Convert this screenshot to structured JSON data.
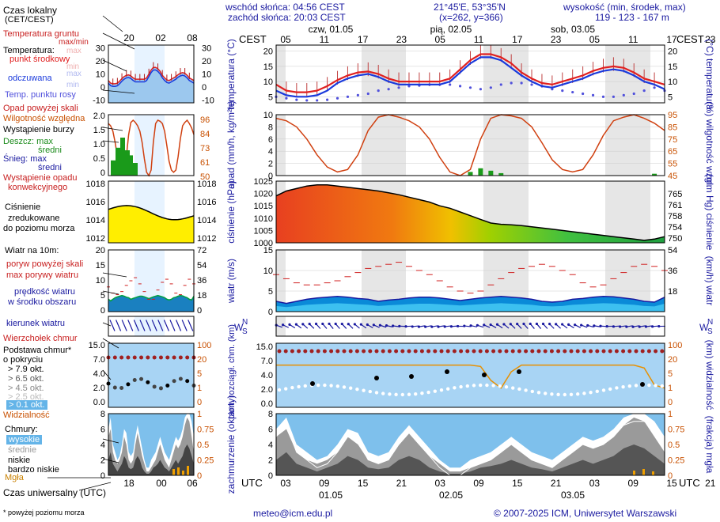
{
  "header": {
    "sunrise": "wschód słońca: 04:56 CEST",
    "sunset": "zachód słońca: 20:03 CEST",
    "coords": "21°45'E, 53°35'N",
    "grid": "(x=262, y=366)",
    "elev_label": "wysokość (min, środek, max)",
    "elev_values": "119 - 123 - 167 m"
  },
  "legend": {
    "local_time": "Czas lokalny",
    "local_time_sub": "(CET/CEST)",
    "ground_temp": "Temperatura gruntu",
    "ground_temp_sub": "max/min",
    "temperature": "Temperatura:",
    "temp_mid": "punkt środkowy",
    "temp_max": "max",
    "temp_min": "min",
    "felt": "odczuwana",
    "felt_max": "max",
    "felt_min": "min",
    "dew": "Temp. punktu rosy",
    "precip_above": "Opad powyżej skali",
    "humidity": "Wilgotność względna",
    "storm": "Wystąpienie burzy",
    "rain_max": "Deszcz: max",
    "rain_mid": "średni",
    "snow_max": "Śnieg:   max",
    "snow_mid": "średni",
    "convective1": "Wystąpienie opadu",
    "convective2": "konwekcyjnego",
    "pressure1": "Ciśnienie",
    "pressure2": "zredukowane",
    "pressure3": "do poziomu morza",
    "wind10": "Wiatr na 10m:",
    "gust_above": "poryw powyżej skali",
    "gust_max": "max porywy wiatru",
    "wind_speed": "prędkość wiatru",
    "wind_speed2": "w środku obszaru",
    "wind_dir": "kierunek wiatru",
    "shear": "Wierzchołek chmur",
    "cloud_base1": "Podstawa chmur*",
    "cloud_base2": "o pokryciu",
    "okt1": "> 7.9 okt.",
    "okt2": "> 6.5 okt.",
    "okt3": "> 4.5 okt.",
    "okt4": "> 2.5 okt.",
    "okt5": "> 0.1 okt.",
    "visibility": "Widzialność",
    "clouds": "Chmury:",
    "c_high": "wysokie",
    "c_mid": "średnie",
    "c_low": "niskie",
    "c_vlow": "bardzo niskie",
    "fog": "Mgła",
    "utc": "Czas uniwersalny (UTC)",
    "footnote": "* powyżej poziomu morza"
  },
  "footer": {
    "email": "meteo@icm.edu.pl",
    "copyright": "© 2007-2025 ICM, Uniwersytet Warszawski"
  },
  "timeline": {
    "cest": "CEST",
    "utc": "UTC",
    "days_top": [
      "czw, 01.05",
      "pią, 02.05",
      "sob, 03.05"
    ],
    "days_bottom": [
      "01.05",
      "02.05",
      "03.05"
    ],
    "hours_top": [
      "05",
      "11",
      "17",
      "23",
      "05",
      "11",
      "17",
      "23",
      "05",
      "11",
      "17",
      "23",
      "05"
    ],
    "hours_bottom": [
      "03",
      "09",
      "15",
      "21",
      "03",
      "09",
      "15",
      "21",
      "03",
      "09",
      "15",
      "21",
      "03"
    ],
    "mini_top": [
      "20",
      "02",
      "08"
    ],
    "mini_bottom": [
      "18",
      "00",
      "06"
    ]
  },
  "colors": {
    "temp": "#e02020",
    "felt": "#1a3adc",
    "dew": "#5050dc",
    "axis": "#1a1aa0",
    "right_axis": "#c85000",
    "night": "#e6e6e6"
  },
  "chart_data": [
    {
      "type": "line",
      "title": "temperatura (°C)",
      "ylabel_left": "temperatura (°C)",
      "ylabel_right": "(°C) temperatura",
      "ylim": [
        3,
        22
      ],
      "yticks": [
        "20",
        "15",
        "10",
        "5"
      ],
      "series": [
        {
          "name": "temperature",
          "values": [
            9,
            7,
            6.5,
            6.5,
            7,
            8.5,
            10.5,
            12,
            13,
            13.3,
            12.5,
            11,
            10,
            10,
            10,
            10,
            10,
            11,
            14,
            17,
            19,
            19,
            18,
            16,
            13,
            11,
            9.5,
            9,
            10,
            11,
            12,
            13.5,
            14.5,
            15,
            14.5,
            13,
            11,
            10,
            9
          ]
        },
        {
          "name": "felt",
          "values": [
            7,
            5.5,
            5,
            5,
            5.5,
            7,
            9.5,
            11,
            12,
            12.5,
            11.5,
            10,
            9,
            9,
            9,
            9,
            9,
            10,
            13,
            16,
            18,
            18,
            17,
            14.5,
            12,
            10,
            8.5,
            8,
            9,
            10,
            11,
            12.5,
            13.5,
            14,
            13.5,
            12,
            10,
            9,
            7.5
          ]
        },
        {
          "name": "dew",
          "values": [
            5,
            4.5,
            4,
            3.8,
            3.8,
            4,
            4.5,
            5,
            5.5,
            6,
            7,
            7.5,
            8,
            8.5,
            8.7,
            9,
            9,
            9,
            8.5,
            8,
            7.5,
            8,
            9,
            9.5,
            9.5,
            9,
            8.5,
            7.5,
            7,
            6.5,
            6,
            5.5,
            5,
            5,
            5.5,
            6,
            7,
            8,
            7
          ]
        }
      ]
    },
    {
      "type": "bar",
      "title": "opad",
      "ylabel_left": "opad (mm/h, kg/m²h)",
      "ylabel_right": "(%) wilgotność wzgl.",
      "ylim": [
        0,
        10
      ],
      "yticks": [
        "10",
        "8",
        "6",
        "4",
        "2",
        "0"
      ],
      "yticks_right": [
        "95",
        "85",
        "75",
        "65",
        "55",
        "45"
      ],
      "humidity": [
        92,
        90,
        85,
        75,
        62,
        52,
        48,
        50,
        62,
        82,
        93,
        95,
        93,
        90,
        85,
        75,
        60,
        48,
        45,
        50,
        75,
        92,
        95,
        94,
        92,
        85,
        72,
        58,
        50,
        48,
        50,
        62,
        78,
        90,
        93,
        95,
        92,
        88,
        82
      ],
      "rain": [
        0,
        0,
        0,
        0,
        0,
        0,
        0,
        0,
        0,
        0,
        0,
        0,
        0,
        0,
        0,
        0,
        0,
        0,
        0,
        0.6,
        1.2,
        0.8,
        0.4,
        0,
        0,
        0,
        0,
        0,
        0,
        0,
        0,
        0,
        0,
        0,
        0,
        0,
        0,
        0.3,
        0
      ]
    },
    {
      "type": "area",
      "title": "ciśnienie",
      "ylabel_left": "ciśnienie (hPa)",
      "ylabel_right": "(mm Hg) ciśnienie",
      "ylim": [
        1000,
        1025
      ],
      "yticks": [
        "1025",
        "1020",
        "1015",
        "1010",
        "1005",
        "1000"
      ],
      "yticks_right": [
        "765",
        "761",
        "758",
        "754",
        "750"
      ],
      "values": [
        1019,
        1021,
        1022,
        1023,
        1023.5,
        1023.5,
        1023,
        1022.5,
        1022,
        1021.5,
        1021,
        1020.3,
        1019.5,
        1018.5,
        1017.5,
        1016.5,
        1015,
        1014,
        1012.5,
        1011,
        1009.5,
        1008,
        1007.5,
        1007.3,
        1007,
        1006.5,
        1006,
        1005.5,
        1005,
        1004.5,
        1004,
        1003.5,
        1003,
        1002.5,
        1002,
        1001.5,
        1001,
        1001.5,
        1002.5
      ]
    },
    {
      "type": "area",
      "title": "wiatr",
      "ylabel_left": "wiatr (m/s)",
      "ylabel_right": "(km/h) wiatr",
      "ylim": [
        0,
        15
      ],
      "yticks": [
        "15",
        "10",
        "5",
        "0"
      ],
      "yticks_right": [
        "54",
        "36",
        "18"
      ],
      "speed": [
        2.5,
        2,
        2.5,
        3,
        3.3,
        3.5,
        3.7,
        3.5,
        3.2,
        3,
        2.5,
        2.8,
        3,
        3.3,
        3.5,
        3.5,
        3.3,
        3,
        2.7,
        3,
        3.3,
        3.5,
        3.7,
        3.5,
        3.3,
        3,
        2.5,
        2.3,
        2.5,
        3,
        3.2,
        3.5,
        3.7,
        3.6,
        3.3,
        3,
        2.5,
        2.3,
        3.5
      ],
      "gust": [
        9,
        8,
        7,
        6.5,
        6.5,
        7,
        7.5,
        8.5,
        9.5,
        10.5,
        11,
        11.5,
        12,
        11,
        10,
        9,
        7.5,
        6,
        5,
        4.5,
        5,
        6.5,
        8,
        9.5,
        10.5,
        11,
        11.5,
        11,
        10,
        9,
        7,
        6,
        6.5,
        8,
        9.5,
        11,
        11.5,
        11,
        10
      ]
    },
    {
      "type": "scatter",
      "title": "podstawa chmur",
      "ylabel_left": "pion. rozciągł. chm. (km)",
      "ylabel_right": "(km) widzialność",
      "ylim": [
        0,
        15
      ],
      "yticks": [
        "15.0",
        "7.0",
        "4.0",
        "2.0",
        "0.0"
      ],
      "yticks_right": [
        "100",
        "20",
        "5",
        "1",
        "0"
      ],
      "visibility": [
        20,
        20,
        20,
        20,
        20,
        20,
        20,
        20,
        20,
        20,
        20,
        20,
        20,
        20,
        20,
        20,
        20,
        20,
        20,
        20,
        18,
        6,
        3,
        12,
        20,
        20,
        20,
        20,
        20,
        20,
        20,
        20,
        20,
        20,
        20,
        20,
        16,
        4,
        3
      ]
    },
    {
      "type": "area",
      "title": "zachmurzenie",
      "ylabel_left": "zachmurzenie (oktanty)",
      "ylabel_right": "(frakcja) mgła",
      "ylim": [
        0,
        8
      ],
      "yticks": [
        "8",
        "6",
        "4",
        "2",
        "0"
      ],
      "yticks_right": [
        "1",
        "0.75",
        "0.5",
        "0.25",
        "0"
      ],
      "high": [
        6,
        7.5,
        4,
        3,
        2,
        2.5,
        4,
        6,
        5.5,
        3,
        2.5,
        3,
        5,
        6.5,
        5,
        3.5,
        2,
        1,
        1,
        2,
        2.5,
        3,
        4,
        5,
        4,
        3,
        2.5,
        2,
        3,
        4,
        5,
        4.5,
        5,
        6,
        7.5,
        8,
        8,
        7,
        5
      ],
      "mid": [
        5,
        6,
        3,
        2,
        1.5,
        2,
        3,
        5,
        4,
        2,
        1.5,
        2,
        4,
        5.5,
        4,
        2.5,
        1.5,
        0.5,
        0.5,
        1,
        1.5,
        2,
        3,
        4,
        3,
        2,
        1.5,
        1,
        2,
        3,
        4,
        3.5,
        4,
        5,
        6.5,
        7.5,
        7,
        5,
        3
      ],
      "low": [
        2,
        3,
        1.5,
        1,
        0.5,
        1,
        1.5,
        2.5,
        2,
        1,
        0.8,
        1,
        2,
        2.5,
        2,
        1,
        0.5,
        0.2,
        0.2,
        0.5,
        1,
        1.2,
        1.5,
        2,
        1.5,
        1,
        0.8,
        0.5,
        1,
        1.5,
        2,
        1.5,
        2,
        2.5,
        3.5,
        4,
        3.5,
        2.5,
        1.5
      ]
    }
  ]
}
